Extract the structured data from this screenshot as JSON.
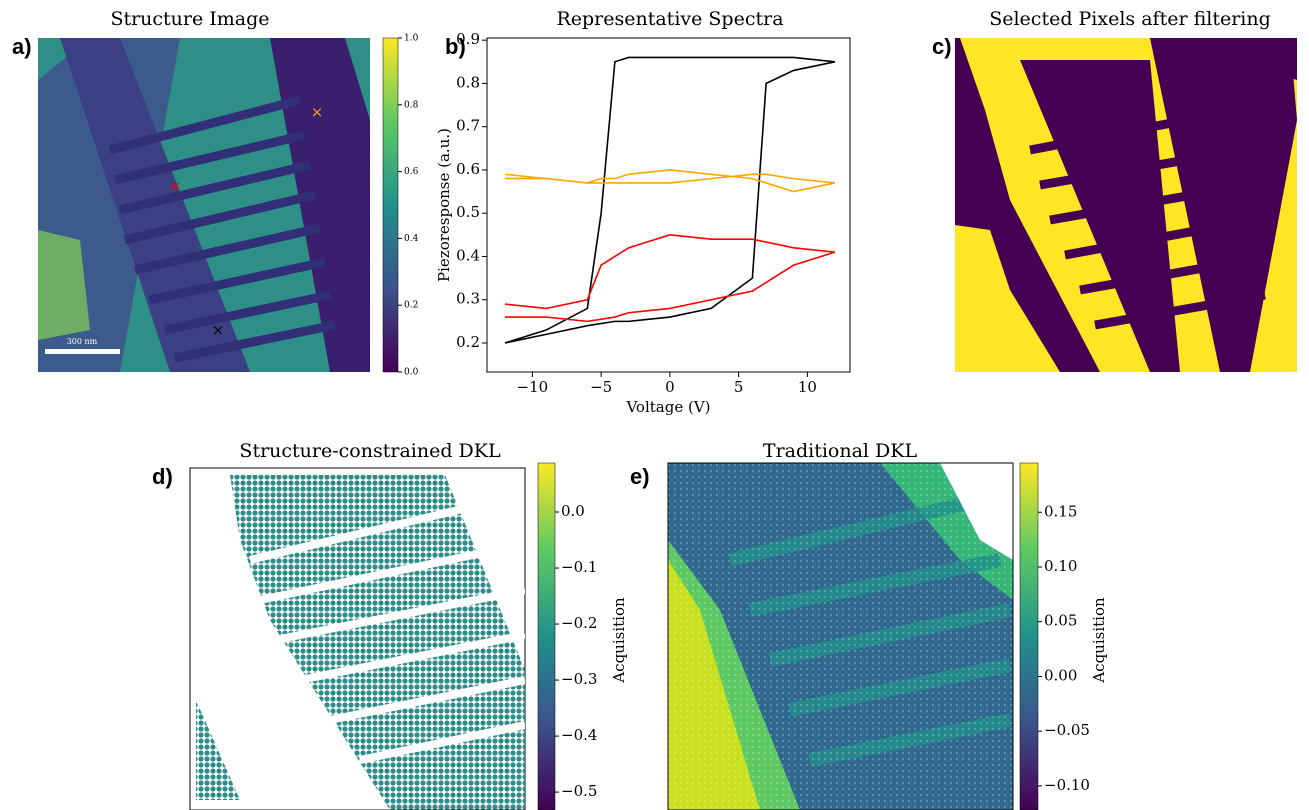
{
  "chart_data": [
    {
      "type": "image",
      "panel_label": "a)",
      "title": "Structure Image",
      "scale_bar": "300 nm",
      "clim": [
        0,
        1
      ],
      "cticks": [
        {
          "value": 0,
          "label": "0.0"
        },
        0.2,
        0.4,
        0.6,
        0.8,
        {
          "value": 1,
          "label": "1.0"
        }
      ]
    },
    {
      "type": "line",
      "panel_label": "b)",
      "title": "Representative Spectra",
      "xlabel": "Voltage (V)",
      "ylabel": "Piezoresponse (a.u.)",
      "x": [
        -12,
        -9,
        -6,
        -4,
        -3,
        0,
        3,
        6,
        7,
        9,
        12,
        9,
        6,
        3,
        0,
        -3,
        -4,
        -5,
        -6,
        -9,
        -12
      ],
      "series": [
        {
          "color": "#000000",
          "values": [
            0.2,
            0.22,
            0.24,
            0.25,
            0.25,
            0.26,
            0.28,
            0.35,
            0.8,
            0.83,
            0.85,
            0.86,
            0.86,
            0.86,
            0.86,
            0.86,
            0.85,
            0.5,
            0.28,
            0.23,
            0.2
          ]
        },
        {
          "color": "#ffa500",
          "values": [
            0.59,
            0.58,
            0.57,
            0.57,
            0.57,
            0.57,
            0.58,
            0.59,
            0.59,
            0.58,
            0.57,
            0.55,
            0.58,
            0.59,
            0.6,
            0.59,
            0.58,
            0.58,
            0.57,
            0.58,
            0.58
          ]
        },
        {
          "color": "#ff0000",
          "values": [
            0.26,
            0.26,
            0.25,
            0.26,
            0.27,
            0.28,
            0.3,
            0.32,
            0.34,
            0.38,
            0.41,
            0.42,
            0.44,
            0.44,
            0.45,
            0.42,
            0.4,
            0.38,
            0.3,
            0.28,
            0.29
          ]
        }
      ],
      "xlim": [
        -13.3,
        13.1
      ],
      "ylim": [
        0.133,
        0.905
      ],
      "xticks": [
        {
          "value": -10,
          "label": "−10"
        },
        {
          "value": -5,
          "label": "−5"
        },
        0,
        5,
        10
      ],
      "yticks": [
        0.2,
        0.3,
        0.4,
        0.5,
        0.6,
        0.7,
        0.8,
        0.9
      ]
    },
    {
      "type": "image",
      "panel_label": "c)",
      "title": "Selected Pixels after filtering"
    },
    {
      "type": "heatmap",
      "panel_label": "d)",
      "title": "Structure-constrained DKL",
      "colorbar_label": "Acquisition",
      "clim": [
        -0.532,
        0.0875
      ],
      "cticks": [
        {
          "value": 0,
          "label": "0.0"
        },
        {
          "value": -0.1,
          "label": "−0.1"
        },
        {
          "value": -0.2,
          "label": "−0.2"
        },
        {
          "value": -0.3,
          "label": "−0.3"
        },
        {
          "value": -0.4,
          "label": "−0.4"
        },
        {
          "value": -0.5,
          "label": "−0.5"
        }
      ]
    },
    {
      "type": "heatmap",
      "panel_label": "e)",
      "title": "Traditional DKL",
      "colorbar_label": "Acquisition",
      "clim": [
        -0.122,
        0.195
      ],
      "cticks": [
        0.15,
        {
          "value": 0.1,
          "label": "0.10"
        },
        0.05,
        {
          "value": 0,
          "label": "0.00"
        },
        {
          "value": -0.05,
          "label": "−0.05"
        },
        {
          "value": -0.1,
          "label": "−0.10"
        }
      ]
    }
  ]
}
